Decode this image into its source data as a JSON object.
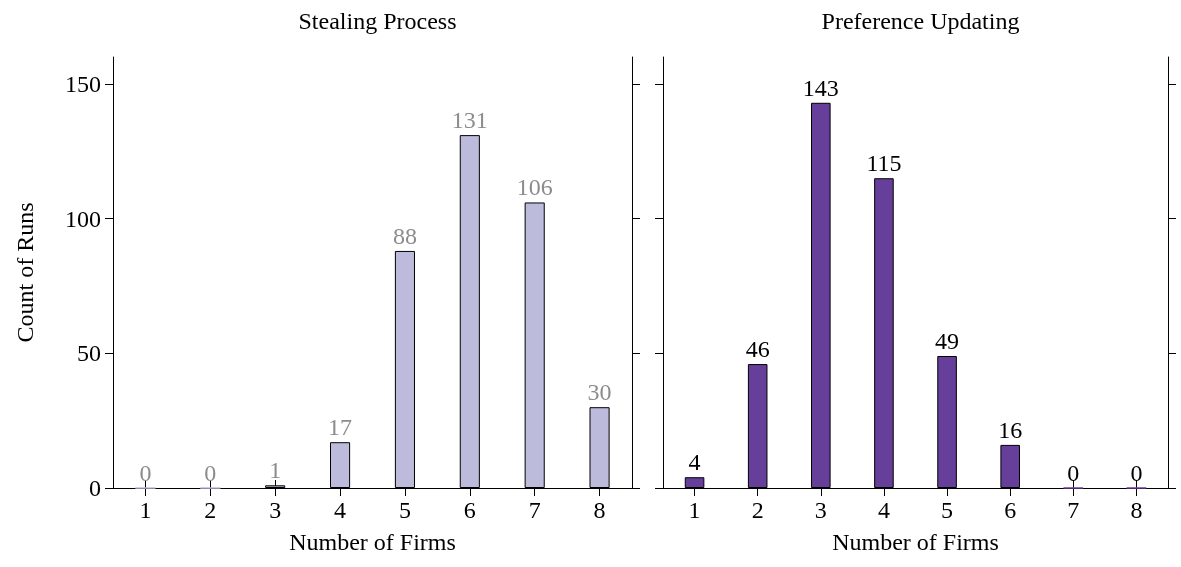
{
  "chart_data": [
    {
      "type": "bar",
      "title": "Stealing Process",
      "xlabel": "Number of Firms",
      "ylabel": "Count of Runs",
      "categories": [
        "1",
        "2",
        "3",
        "4",
        "5",
        "6",
        "7",
        "8"
      ],
      "values": [
        0,
        0,
        1,
        17,
        88,
        131,
        106,
        30
      ],
      "color": "#bcbbdc",
      "ylim": [
        0,
        160
      ],
      "yticks": [
        0,
        50,
        100,
        150
      ],
      "data_labels": true,
      "grid": false
    },
    {
      "type": "bar",
      "title": "Preference Updating",
      "xlabel": "Number of Firms",
      "categories": [
        "1",
        "2",
        "3",
        "4",
        "5",
        "6",
        "7",
        "8"
      ],
      "values": [
        4,
        46,
        143,
        115,
        49,
        16,
        0,
        0
      ],
      "color": "#653f99",
      "ylim": [
        0,
        160
      ],
      "yticks": [
        0,
        50,
        100,
        150
      ],
      "data_labels": true,
      "grid": false,
      "tick_labels": "x"
    }
  ]
}
